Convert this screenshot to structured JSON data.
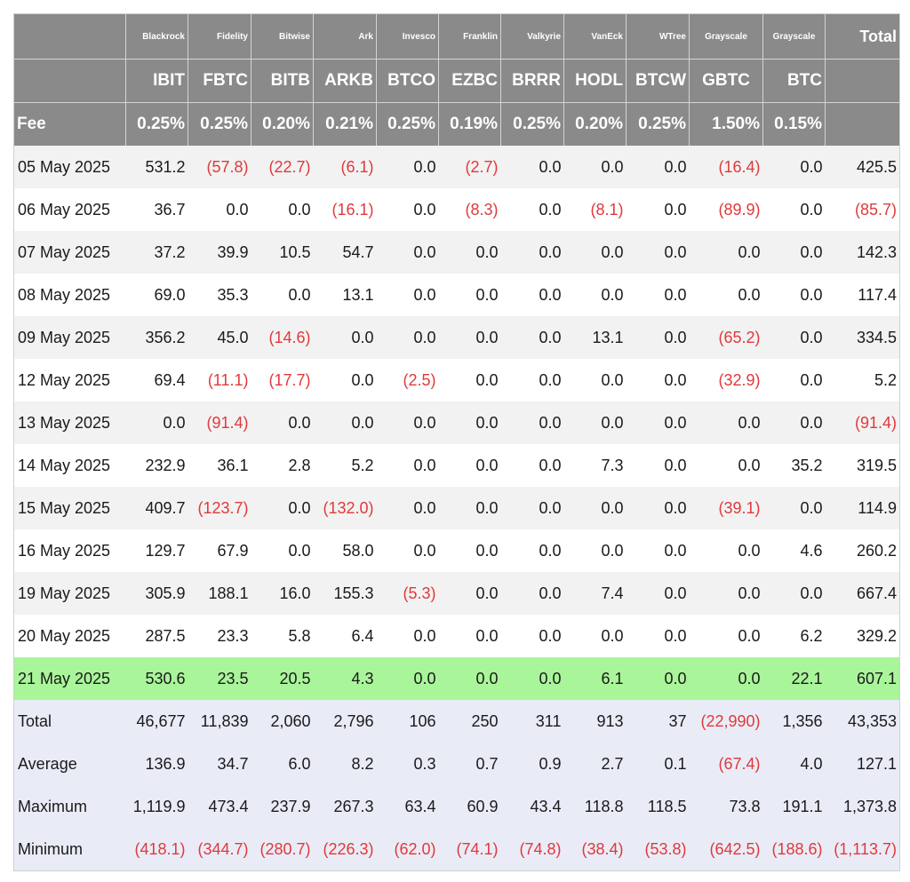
{
  "columns": [
    {
      "issuer": "Blackrock",
      "ticker": "IBIT",
      "fee": "0.25%"
    },
    {
      "issuer": "Fidelity",
      "ticker": "FBTC",
      "fee": "0.25%"
    },
    {
      "issuer": "Bitwise",
      "ticker": "BITB",
      "fee": "0.20%"
    },
    {
      "issuer": "Ark",
      "ticker": "ARKB",
      "fee": "0.21%"
    },
    {
      "issuer": "Invesco",
      "ticker": "BTCO",
      "fee": "0.25%"
    },
    {
      "issuer": "Franklin",
      "ticker": "EZBC",
      "fee": "0.19%"
    },
    {
      "issuer": "Valkyrie",
      "ticker": "BRRR",
      "fee": "0.25%"
    },
    {
      "issuer": "VanEck",
      "ticker": "HODL",
      "fee": "0.20%"
    },
    {
      "issuer": "WTree",
      "ticker": "BTCW",
      "fee": "0.25%"
    },
    {
      "issuer": "Grayscale",
      "ticker": "GBTC",
      "fee": "1.50%"
    },
    {
      "issuer": "Grayscale",
      "ticker": "BTC",
      "fee": "0.15%"
    }
  ],
  "total_header": "Total",
  "fee_label": "Fee",
  "rows": [
    {
      "label": "05 May 2025",
      "values": [
        "531.2",
        "(57.8)",
        "(22.7)",
        "(6.1)",
        "0.0",
        "(2.7)",
        "0.0",
        "0.0",
        "0.0",
        "(16.4)",
        "0.0",
        "425.5"
      ]
    },
    {
      "label": "06 May 2025",
      "values": [
        "36.7",
        "0.0",
        "0.0",
        "(16.1)",
        "0.0",
        "(8.3)",
        "0.0",
        "(8.1)",
        "0.0",
        "(89.9)",
        "0.0",
        "(85.7)"
      ]
    },
    {
      "label": "07 May 2025",
      "values": [
        "37.2",
        "39.9",
        "10.5",
        "54.7",
        "0.0",
        "0.0",
        "0.0",
        "0.0",
        "0.0",
        "0.0",
        "0.0",
        "142.3"
      ]
    },
    {
      "label": "08 May 2025",
      "values": [
        "69.0",
        "35.3",
        "0.0",
        "13.1",
        "0.0",
        "0.0",
        "0.0",
        "0.0",
        "0.0",
        "0.0",
        "0.0",
        "117.4"
      ]
    },
    {
      "label": "09 May 2025",
      "values": [
        "356.2",
        "45.0",
        "(14.6)",
        "0.0",
        "0.0",
        "0.0",
        "0.0",
        "13.1",
        "0.0",
        "(65.2)",
        "0.0",
        "334.5"
      ]
    },
    {
      "label": "12 May 2025",
      "values": [
        "69.4",
        "(11.1)",
        "(17.7)",
        "0.0",
        "(2.5)",
        "0.0",
        "0.0",
        "0.0",
        "0.0",
        "(32.9)",
        "0.0",
        "5.2"
      ]
    },
    {
      "label": "13 May 2025",
      "values": [
        "0.0",
        "(91.4)",
        "0.0",
        "0.0",
        "0.0",
        "0.0",
        "0.0",
        "0.0",
        "0.0",
        "0.0",
        "0.0",
        "(91.4)"
      ]
    },
    {
      "label": "14 May 2025",
      "values": [
        "232.9",
        "36.1",
        "2.8",
        "5.2",
        "0.0",
        "0.0",
        "0.0",
        "7.3",
        "0.0",
        "0.0",
        "35.2",
        "319.5"
      ]
    },
    {
      "label": "15 May 2025",
      "values": [
        "409.7",
        "(123.7)",
        "0.0",
        "(132.0)",
        "0.0",
        "0.0",
        "0.0",
        "0.0",
        "0.0",
        "(39.1)",
        "0.0",
        "114.9"
      ]
    },
    {
      "label": "16 May 2025",
      "values": [
        "129.7",
        "67.9",
        "0.0",
        "58.0",
        "0.0",
        "0.0",
        "0.0",
        "0.0",
        "0.0",
        "0.0",
        "4.6",
        "260.2"
      ]
    },
    {
      "label": "19 May 2025",
      "values": [
        "305.9",
        "188.1",
        "16.0",
        "155.3",
        "(5.3)",
        "0.0",
        "0.0",
        "7.4",
        "0.0",
        "0.0",
        "0.0",
        "667.4"
      ]
    },
    {
      "label": "20 May 2025",
      "values": [
        "287.5",
        "23.3",
        "5.8",
        "6.4",
        "0.0",
        "0.0",
        "0.0",
        "0.0",
        "0.0",
        "0.0",
        "6.2",
        "329.2"
      ]
    },
    {
      "label": "21 May 2025",
      "values": [
        "530.6",
        "23.5",
        "20.5",
        "4.3",
        "0.0",
        "0.0",
        "0.0",
        "6.1",
        "0.0",
        "0.0",
        "22.1",
        "607.1"
      ],
      "highlight": true
    }
  ],
  "summary": [
    {
      "label": "Total",
      "values": [
        "46,677",
        "11,839",
        "2,060",
        "2,796",
        "106",
        "250",
        "311",
        "913",
        "37",
        "(22,990)",
        "1,356",
        "43,353"
      ]
    },
    {
      "label": "Average",
      "values": [
        "136.9",
        "34.7",
        "6.0",
        "8.2",
        "0.3",
        "0.7",
        "0.9",
        "2.7",
        "0.1",
        "(67.4)",
        "4.0",
        "127.1"
      ]
    },
    {
      "label": "Maximum",
      "values": [
        "1,119.9",
        "473.4",
        "237.9",
        "267.3",
        "63.4",
        "60.9",
        "43.4",
        "118.8",
        "118.5",
        "73.8",
        "191.1",
        "1,373.8"
      ]
    },
    {
      "label": "Minimum",
      "values": [
        "(418.1)",
        "(344.7)",
        "(280.7)",
        "(226.3)",
        "(62.0)",
        "(74.1)",
        "(74.8)",
        "(38.4)",
        "(53.8)",
        "(642.5)",
        "(188.6)",
        "(1,113.7)"
      ]
    }
  ],
  "colors": {
    "header_bg": "#8a8a8a",
    "negative": "#e0393b",
    "highlight_row": "#a9f59a",
    "summary_bg": "#e9ecf7",
    "stripe": "#f2f2f2"
  }
}
